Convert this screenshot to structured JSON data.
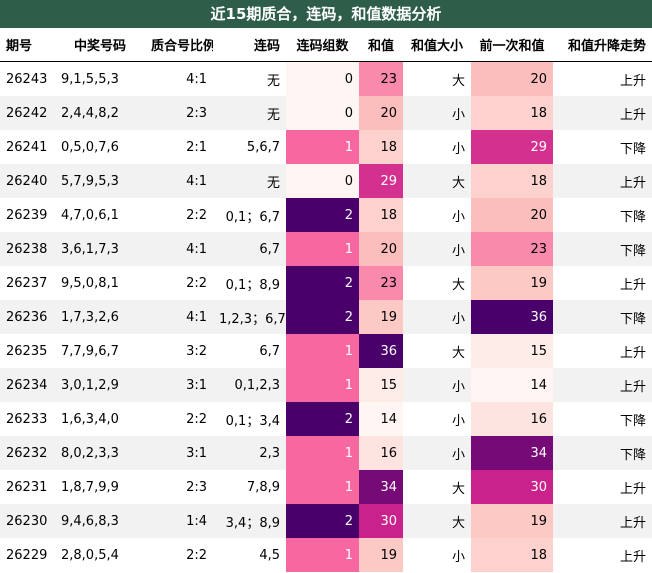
{
  "title": "近15期质合，连码，和值数据分析",
  "headers": [
    "期号",
    "中奖号码",
    "质合号比例",
    "连码",
    "连码组数",
    "和值",
    "和值大小",
    "前一次和值",
    "和值升降走势"
  ],
  "colors": {
    "title_bg": "#2e5e4a",
    "row_alt": "#f2f2f2",
    "heat_0": "#fff5f2",
    "heat_1": "#f768a1",
    "heat_2": "#49006a"
  },
  "rows": [
    {
      "issue": "26243",
      "numbers": "9,1,5,5,3",
      "ratio": "4:1",
      "consecutive": "无",
      "groups": "0",
      "sum": "23",
      "size": "大",
      "prev_sum": "20",
      "trend": "上升"
    },
    {
      "issue": "26242",
      "numbers": "2,4,4,8,2",
      "ratio": "2:3",
      "consecutive": "无",
      "groups": "0",
      "sum": "20",
      "size": "小",
      "prev_sum": "18",
      "trend": "上升"
    },
    {
      "issue": "26241",
      "numbers": "0,5,0,7,6",
      "ratio": "2:1",
      "consecutive": "5,6,7",
      "groups": "1",
      "sum": "18",
      "size": "小",
      "prev_sum": "29",
      "trend": "下降"
    },
    {
      "issue": "26240",
      "numbers": "5,7,9,5,3",
      "ratio": "4:1",
      "consecutive": "无",
      "groups": "0",
      "sum": "29",
      "size": "大",
      "prev_sum": "18",
      "trend": "上升"
    },
    {
      "issue": "26239",
      "numbers": "4,7,0,6,1",
      "ratio": "2:2",
      "consecutive": "0,1；6,7",
      "groups": "2",
      "sum": "18",
      "size": "小",
      "prev_sum": "20",
      "trend": "下降"
    },
    {
      "issue": "26238",
      "numbers": "3,6,1,7,3",
      "ratio": "4:1",
      "consecutive": "6,7",
      "groups": "1",
      "sum": "20",
      "size": "小",
      "prev_sum": "23",
      "trend": "下降"
    },
    {
      "issue": "26237",
      "numbers": "9,5,0,8,1",
      "ratio": "2:2",
      "consecutive": "0,1；8,9",
      "groups": "2",
      "sum": "23",
      "size": "大",
      "prev_sum": "19",
      "trend": "上升"
    },
    {
      "issue": "26236",
      "numbers": "1,7,3,2,6",
      "ratio": "4:1",
      "consecutive": "1,2,3；6,7",
      "groups": "2",
      "sum": "19",
      "size": "小",
      "prev_sum": "36",
      "trend": "下降"
    },
    {
      "issue": "26235",
      "numbers": "7,7,9,6,7",
      "ratio": "3:2",
      "consecutive": "6,7",
      "groups": "1",
      "sum": "36",
      "size": "大",
      "prev_sum": "15",
      "trend": "上升"
    },
    {
      "issue": "26234",
      "numbers": "3,0,1,2,9",
      "ratio": "3:1",
      "consecutive": "0,1,2,3",
      "groups": "1",
      "sum": "15",
      "size": "小",
      "prev_sum": "14",
      "trend": "上升"
    },
    {
      "issue": "26233",
      "numbers": "1,6,3,4,0",
      "ratio": "2:2",
      "consecutive": "0,1；3,4",
      "groups": "2",
      "sum": "14",
      "size": "小",
      "prev_sum": "16",
      "trend": "下降"
    },
    {
      "issue": "26232",
      "numbers": "8,0,2,3,3",
      "ratio": "3:1",
      "consecutive": "2,3",
      "groups": "1",
      "sum": "16",
      "size": "小",
      "prev_sum": "34",
      "trend": "下降"
    },
    {
      "issue": "26231",
      "numbers": "1,8,7,9,9",
      "ratio": "2:3",
      "consecutive": "7,8,9",
      "groups": "1",
      "sum": "34",
      "size": "大",
      "prev_sum": "30",
      "trend": "上升"
    },
    {
      "issue": "26230",
      "numbers": "9,4,6,8,3",
      "ratio": "1:4",
      "consecutive": "3,4；8,9",
      "groups": "2",
      "sum": "30",
      "size": "大",
      "prev_sum": "19",
      "trend": "上升"
    },
    {
      "issue": "26229",
      "numbers": "2,8,0,5,4",
      "ratio": "2:2",
      "consecutive": "4,5",
      "groups": "1",
      "sum": "19",
      "size": "小",
      "prev_sum": "18",
      "trend": "上升"
    }
  ]
}
